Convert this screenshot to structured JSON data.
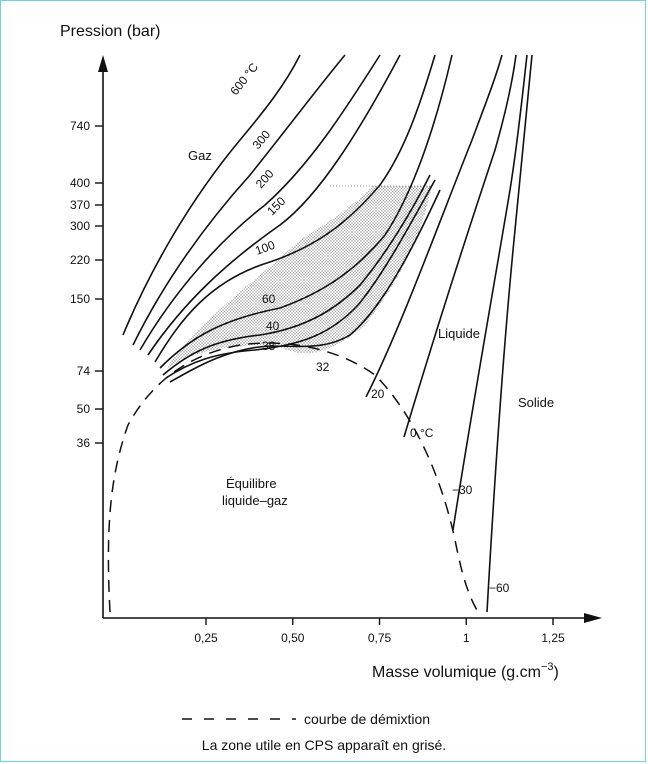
{
  "chart_data": {
    "type": "line",
    "title": "",
    "ylabel": "Pression (bar)",
    "xlabel_main": "Masse volumique (g.cm",
    "xlabel_exp": "−3",
    "xlabel_close": ")",
    "x_ticks": [
      "0,25",
      "0,50",
      "0,75",
      "1",
      "1,25"
    ],
    "x_tick_values": [
      0.25,
      0.5,
      0.75,
      1.0,
      1.25
    ],
    "y_ticks": [
      "740",
      "400",
      "370",
      "300",
      "220",
      "150",
      "74",
      "50",
      "36"
    ],
    "y_tick_values": [
      740,
      400,
      370,
      300,
      220,
      150,
      74,
      50,
      36
    ],
    "region_labels": {
      "gaz": "Gaz",
      "liquide": "Liquide",
      "solide": "Solide",
      "equilibre_1": "Équilibre",
      "equilibre_2": "liquide–gaz"
    },
    "isotherm_labels": [
      "600 °C",
      "300",
      "200",
      "150",
      "100",
      "60",
      "40",
      "38",
      "32",
      "20",
      "0 °C",
      "−30",
      "−60"
    ],
    "legend": {
      "demixtion": "courbe de démixtion",
      "note": "La zone utile en CPS apparaît en grisé."
    }
  }
}
